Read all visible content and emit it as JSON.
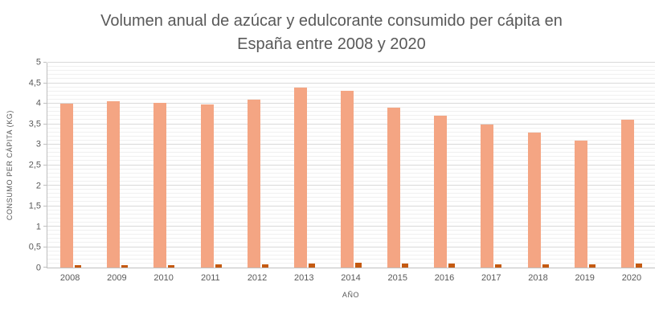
{
  "chart_data": {
    "type": "bar",
    "title": "Volumen anual de azúcar y edulcorante consumido per cápita en España entre 2008 y 2020",
    "xlabel": "AÑO",
    "ylabel": "CONSUMO PER CÁPITA (KG)",
    "ylim": [
      0,
      5
    ],
    "y_major_step": 0.5,
    "y_minor_step": 0.1,
    "y_tick_labels": [
      "0",
      "0,5",
      "1",
      "1,5",
      "2",
      "2,5",
      "3",
      "3,5",
      "4",
      "4,5",
      "5"
    ],
    "grid": "horizontal major+minor",
    "legend": "none",
    "categories": [
      "2008",
      "2009",
      "2010",
      "2011",
      "2012",
      "2013",
      "2014",
      "2015",
      "2016",
      "2017",
      "2018",
      "2019",
      "2020"
    ],
    "series": [
      {
        "name": "azucar",
        "color": "#F4A583",
        "values": [
          4.0,
          4.05,
          4.02,
          3.98,
          4.1,
          4.4,
          4.32,
          3.9,
          3.7,
          3.5,
          3.3,
          3.1,
          3.6
        ]
      },
      {
        "name": "edulcorante",
        "color": "#C55A11",
        "values": [
          0.05,
          0.05,
          0.06,
          0.08,
          0.08,
          0.1,
          0.12,
          0.09,
          0.09,
          0.08,
          0.08,
          0.08,
          0.1
        ]
      }
    ]
  },
  "colors": {
    "major_gridline": "#D9D9D9",
    "minor_gridline": "#F0F0F0",
    "axis_line": "#BFBFBF",
    "text": "#595959"
  }
}
